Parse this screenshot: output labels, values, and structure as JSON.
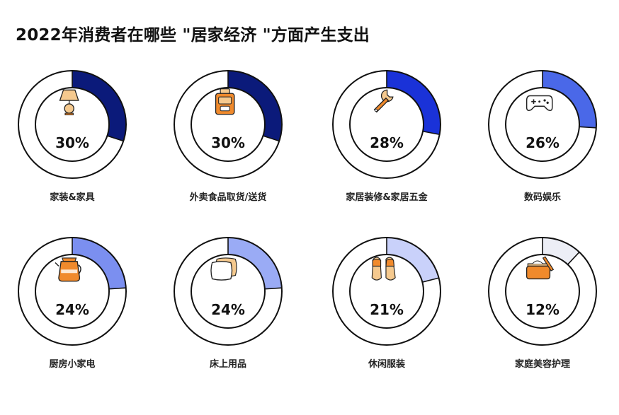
{
  "title": "2022年消费者在哪些 \"居家经济 \"方面产生支出",
  "colors": {
    "ring_outline": "#111111",
    "ring_fill": "#ffffff",
    "icon_orange": "#f08a2c",
    "icon_tan": "#f5c98e",
    "shades": [
      "#0b1a7a",
      "#0b1a7a",
      "#1a32d8",
      "#4a68e8",
      "#7b8ff0",
      "#9aabf5",
      "#c9d1fa",
      "#eceef6"
    ]
  },
  "chart_data": {
    "type": "pie",
    "title": "2022年消费者在哪些 \"居家经济 \"方面产生支出",
    "unit": "%",
    "categories": [
      "家装&家具",
      "外卖食品取货/送货",
      "家居装修&家居五金",
      "数码娱乐",
      "厨房小家电",
      "床上用品",
      "休闲服装",
      "家庭美容护理"
    ],
    "values": [
      30,
      30,
      28,
      26,
      24,
      24,
      21,
      12
    ],
    "labels": [
      "30%",
      "30%",
      "28%",
      "26%",
      "24%",
      "24%",
      "21%",
      "12%"
    ],
    "icons": [
      "lamp-icon",
      "food-bag-icon",
      "wrench-icon",
      "gamepad-icon",
      "kettle-icon",
      "pillow-icon",
      "slippers-icon",
      "cosmetic-box-icon"
    ]
  }
}
